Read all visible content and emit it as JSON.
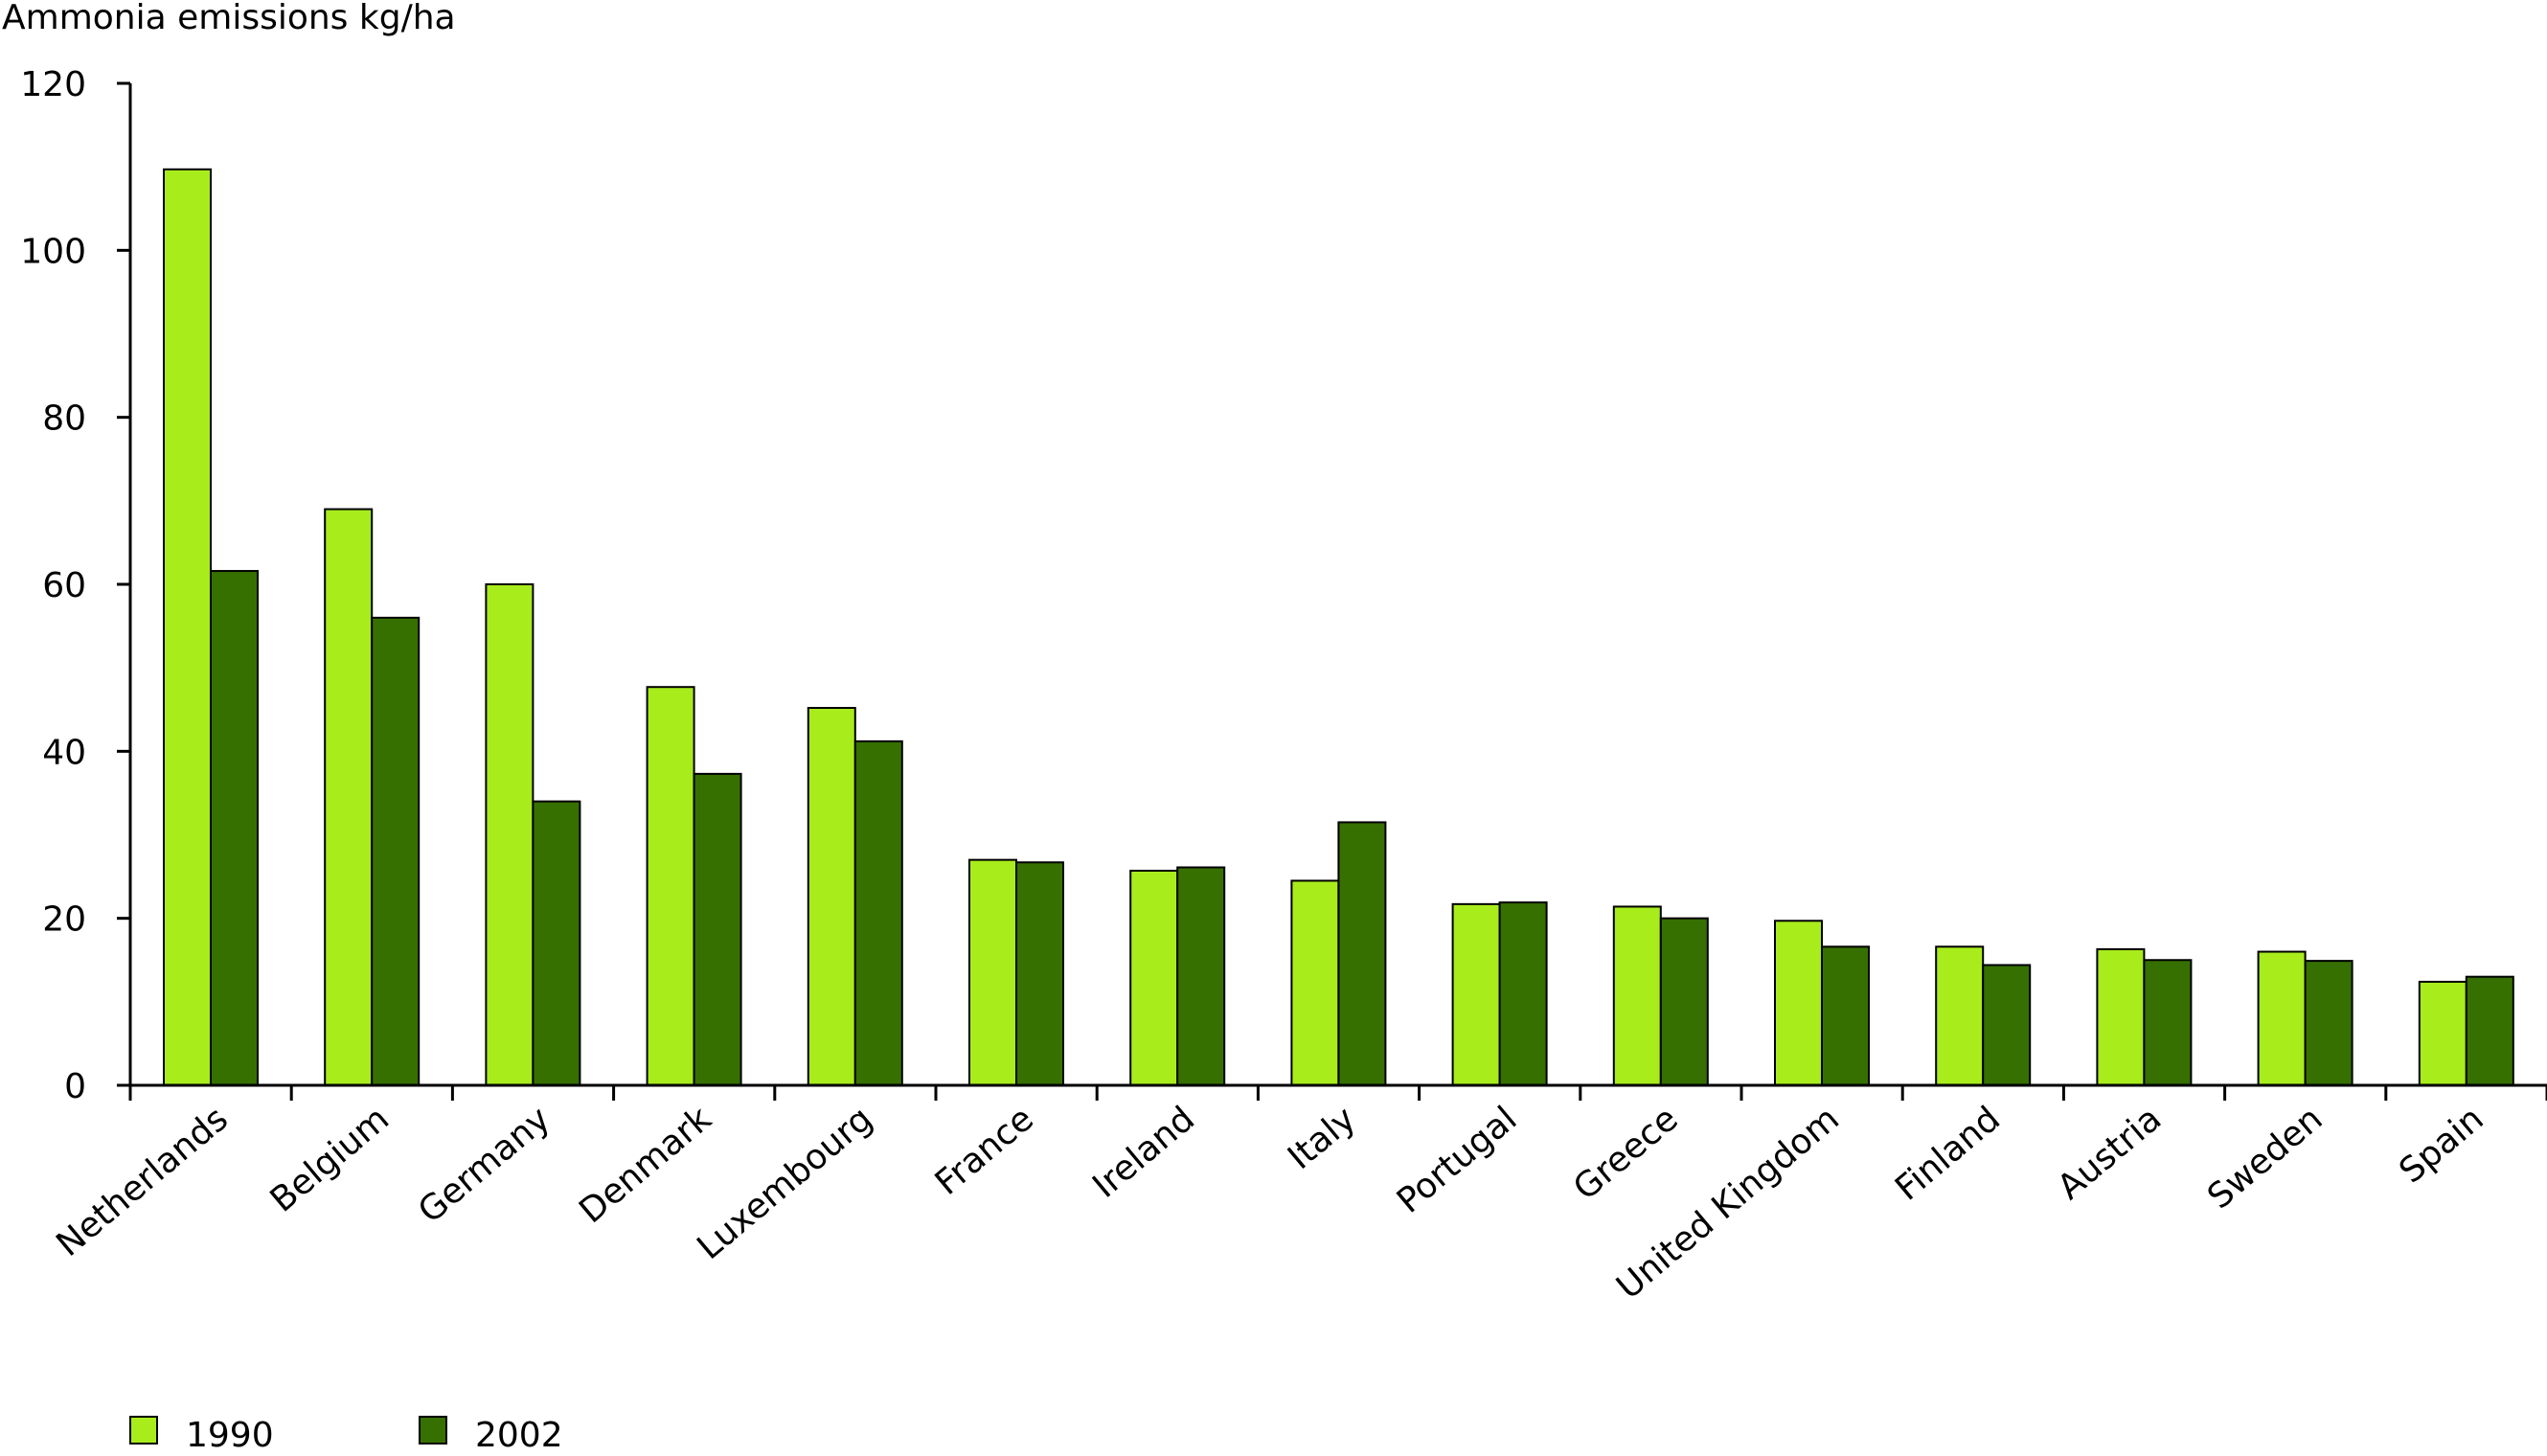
{
  "chart_data": {
    "type": "bar",
    "ylabel": "Ammonia emissions kg/ha",
    "ylim": [
      0,
      120
    ],
    "yticks": [
      0,
      20,
      40,
      60,
      80,
      100,
      120
    ],
    "grid": false,
    "legend_placement": "bottom-left",
    "categories": [
      "Netherlands",
      "Belgium",
      "Germany",
      "Denmark",
      "Luxembourg",
      "France",
      "Ireland",
      "Italy",
      "Portugal",
      "Greece",
      "United Kingdom",
      "Finland",
      "Austria",
      "Sweden",
      "Spain"
    ],
    "series": [
      {
        "name": "1990",
        "color": "#a8ec1c",
        "values": [
          109.7,
          69.0,
          60.0,
          47.7,
          45.2,
          27.0,
          25.7,
          24.5,
          21.7,
          21.4,
          19.7,
          16.6,
          16.3,
          16.0,
          12.4
        ]
      },
      {
        "name": "2002",
        "color": "#367000",
        "values": [
          61.6,
          56.0,
          34.0,
          37.3,
          41.2,
          26.7,
          26.1,
          31.5,
          21.9,
          20.0,
          16.6,
          14.4,
          15.0,
          14.9,
          13.0
        ]
      }
    ]
  }
}
